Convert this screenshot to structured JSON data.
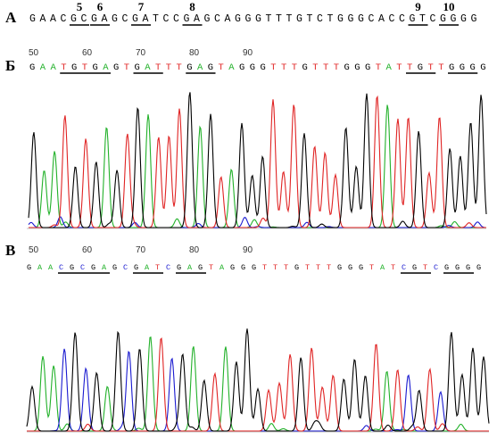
{
  "colors": {
    "A": "#22b12a",
    "C": "#1a1ad0",
    "G": "#000000",
    "T": "#e02424"
  },
  "panel_a": {
    "label": "А",
    "sequence": "GAACGCGAGCGATCCGAGCAGGGTTTGTCTGGGCACCGTCGGGG",
    "sites": [
      {
        "num": "5",
        "start": 4,
        "end": 5
      },
      {
        "num": "6",
        "start": 6,
        "end": 7
      },
      {
        "num": "7",
        "start": 10,
        "end": 11
      },
      {
        "num": "8",
        "start": 15,
        "end": 16
      },
      {
        "num": "9",
        "start": 37,
        "end": 38
      },
      {
        "num": "10",
        "start": 40,
        "end": 41
      }
    ]
  },
  "panel_b": {
    "label": "Б",
    "positions": [
      "50",
      "60",
      "70",
      "80",
      "90"
    ],
    "sequence": "GAATGTGAGTGATTTGAGTAGGGTTTGTTTGGGTATTGTTGGGG",
    "underlines": [
      [
        3,
        7
      ],
      [
        10,
        12
      ],
      [
        15,
        17
      ],
      [
        36,
        38
      ],
      [
        40,
        42
      ]
    ]
  },
  "panel_c": {
    "label": "В",
    "positions": [
      "50",
      "60",
      "70",
      "80",
      "90"
    ],
    "sequence": "GAACGCGAGCGATCGAGTAGGGTTTGTTTGGGTATCGTCGGGG",
    "underlines": [
      [
        3,
        7
      ],
      [
        10,
        12
      ],
      [
        14,
        16
      ],
      [
        35,
        37
      ],
      [
        39,
        41
      ]
    ]
  }
}
